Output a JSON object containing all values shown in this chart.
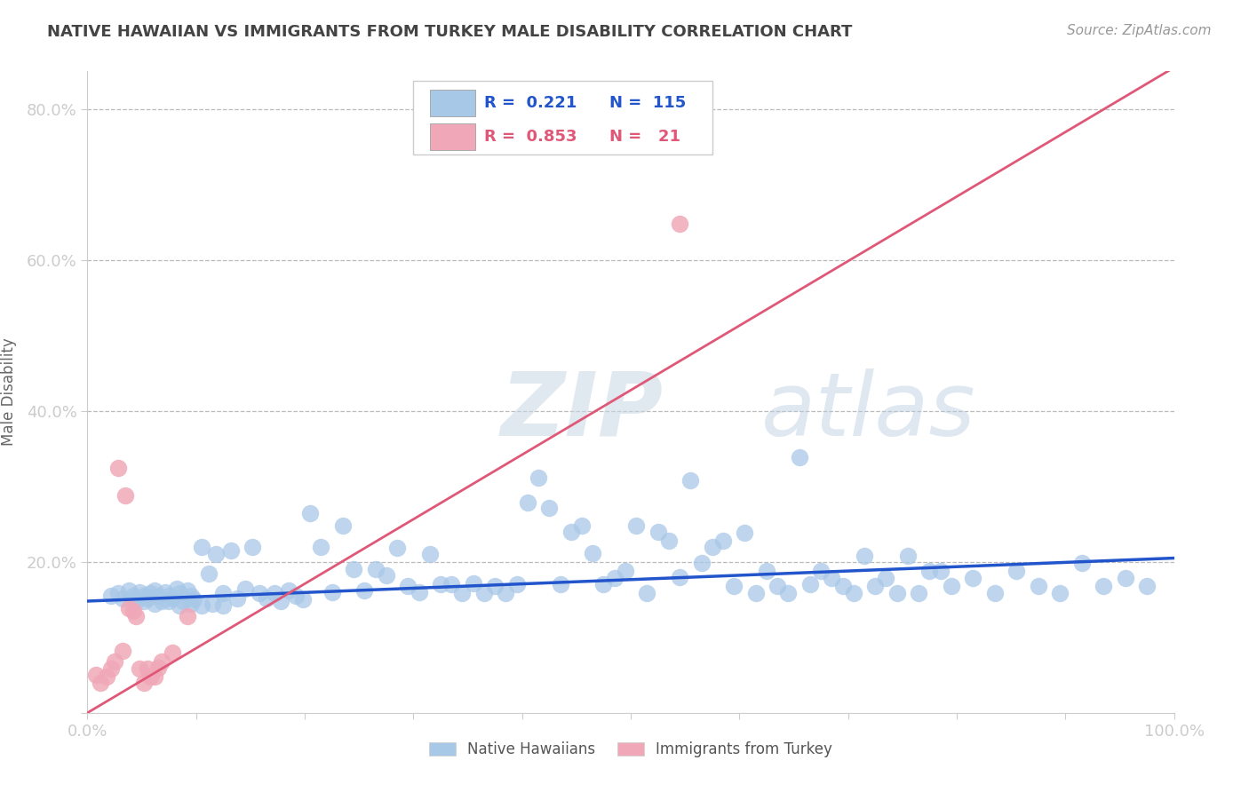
{
  "title": "NATIVE HAWAIIAN VS IMMIGRANTS FROM TURKEY MALE DISABILITY CORRELATION CHART",
  "source": "Source: ZipAtlas.com",
  "ylabel": "Male Disability",
  "xlim": [
    0,
    1.0
  ],
  "ylim": [
    0,
    0.85
  ],
  "xtick_positions": [
    0.0,
    0.1,
    0.2,
    0.3,
    0.4,
    0.5,
    0.6,
    0.7,
    0.8,
    0.9,
    1.0
  ],
  "xtick_labels": [
    "0.0%",
    "",
    "",
    "",
    "",
    "",
    "",
    "",
    "",
    "",
    "100.0%"
  ],
  "ytick_positions": [
    0.0,
    0.2,
    0.4,
    0.6,
    0.8
  ],
  "ytick_labels": [
    "",
    "20.0%",
    "40.0%",
    "60.0%",
    "80.0%"
  ],
  "grid_color": "#bbbbbb",
  "background_color": "#ffffff",
  "blue_color": "#a8c8e8",
  "pink_color": "#f0a8b8",
  "blue_line_color": "#2255cc",
  "pink_line_color": "#e05878",
  "title_color": "#444444",
  "axis_label_color": "#4488cc",
  "tick_label_color": "#4488cc",
  "ylabel_color": "#666666",
  "source_color": "#999999",
  "watermark_color": "#d0dfe8",
  "blue_line_y0": 0.148,
  "blue_line_y1": 0.205,
  "pink_line_y0": 0.0,
  "pink_line_y1": 0.855,
  "blue_x": [
    0.022,
    0.028,
    0.032,
    0.038,
    0.042,
    0.045,
    0.048,
    0.052,
    0.055,
    0.058,
    0.062,
    0.065,
    0.068,
    0.072,
    0.075,
    0.078,
    0.082,
    0.085,
    0.088,
    0.092,
    0.095,
    0.098,
    0.105,
    0.112,
    0.118,
    0.125,
    0.132,
    0.138,
    0.145,
    0.152,
    0.158,
    0.165,
    0.172,
    0.178,
    0.185,
    0.192,
    0.198,
    0.205,
    0.215,
    0.225,
    0.235,
    0.245,
    0.255,
    0.265,
    0.275,
    0.285,
    0.295,
    0.305,
    0.315,
    0.325,
    0.335,
    0.345,
    0.355,
    0.365,
    0.375,
    0.385,
    0.395,
    0.405,
    0.415,
    0.425,
    0.435,
    0.445,
    0.455,
    0.465,
    0.475,
    0.485,
    0.495,
    0.505,
    0.515,
    0.525,
    0.535,
    0.545,
    0.555,
    0.565,
    0.575,
    0.585,
    0.595,
    0.605,
    0.615,
    0.625,
    0.635,
    0.645,
    0.655,
    0.665,
    0.675,
    0.685,
    0.695,
    0.705,
    0.715,
    0.725,
    0.735,
    0.745,
    0.755,
    0.765,
    0.775,
    0.785,
    0.795,
    0.815,
    0.835,
    0.855,
    0.875,
    0.895,
    0.915,
    0.935,
    0.955,
    0.975,
    0.042,
    0.052,
    0.062,
    0.075,
    0.085,
    0.095,
    0.105,
    0.115,
    0.125
  ],
  "blue_y": [
    0.155,
    0.158,
    0.152,
    0.162,
    0.155,
    0.148,
    0.16,
    0.155,
    0.152,
    0.158,
    0.162,
    0.155,
    0.148,
    0.16,
    0.155,
    0.152,
    0.165,
    0.158,
    0.148,
    0.162,
    0.155,
    0.15,
    0.22,
    0.185,
    0.21,
    0.158,
    0.215,
    0.152,
    0.165,
    0.22,
    0.158,
    0.152,
    0.158,
    0.148,
    0.162,
    0.155,
    0.15,
    0.265,
    0.22,
    0.16,
    0.248,
    0.19,
    0.162,
    0.19,
    0.182,
    0.218,
    0.168,
    0.16,
    0.21,
    0.17,
    0.17,
    0.158,
    0.172,
    0.158,
    0.168,
    0.158,
    0.17,
    0.278,
    0.312,
    0.272,
    0.17,
    0.24,
    0.248,
    0.212,
    0.17,
    0.178,
    0.188,
    0.248,
    0.158,
    0.24,
    0.228,
    0.18,
    0.308,
    0.198,
    0.22,
    0.228,
    0.168,
    0.238,
    0.158,
    0.188,
    0.168,
    0.158,
    0.338,
    0.17,
    0.188,
    0.178,
    0.168,
    0.158,
    0.208,
    0.168,
    0.178,
    0.158,
    0.208,
    0.158,
    0.188,
    0.188,
    0.168,
    0.178,
    0.158,
    0.188,
    0.168,
    0.158,
    0.198,
    0.168,
    0.178,
    0.168,
    0.148,
    0.148,
    0.145,
    0.148,
    0.142,
    0.145,
    0.142,
    0.145,
    0.142
  ],
  "pink_x": [
    0.008,
    0.012,
    0.018,
    0.022,
    0.025,
    0.028,
    0.032,
    0.035,
    0.038,
    0.042,
    0.045,
    0.048,
    0.052,
    0.055,
    0.058,
    0.062,
    0.065,
    0.068,
    0.078,
    0.092,
    0.545
  ],
  "pink_y": [
    0.05,
    0.04,
    0.048,
    0.058,
    0.068,
    0.325,
    0.082,
    0.288,
    0.138,
    0.135,
    0.128,
    0.058,
    0.04,
    0.058,
    0.048,
    0.048,
    0.06,
    0.068,
    0.08,
    0.128,
    0.648
  ],
  "legend_r1": "R =  0.221",
  "legend_n1": "N =  115",
  "legend_r2": "R =  0.853",
  "legend_n2": "N =   21",
  "legend_label1": "Native Hawaiians",
  "legend_label2": "Immigrants from Turkey"
}
